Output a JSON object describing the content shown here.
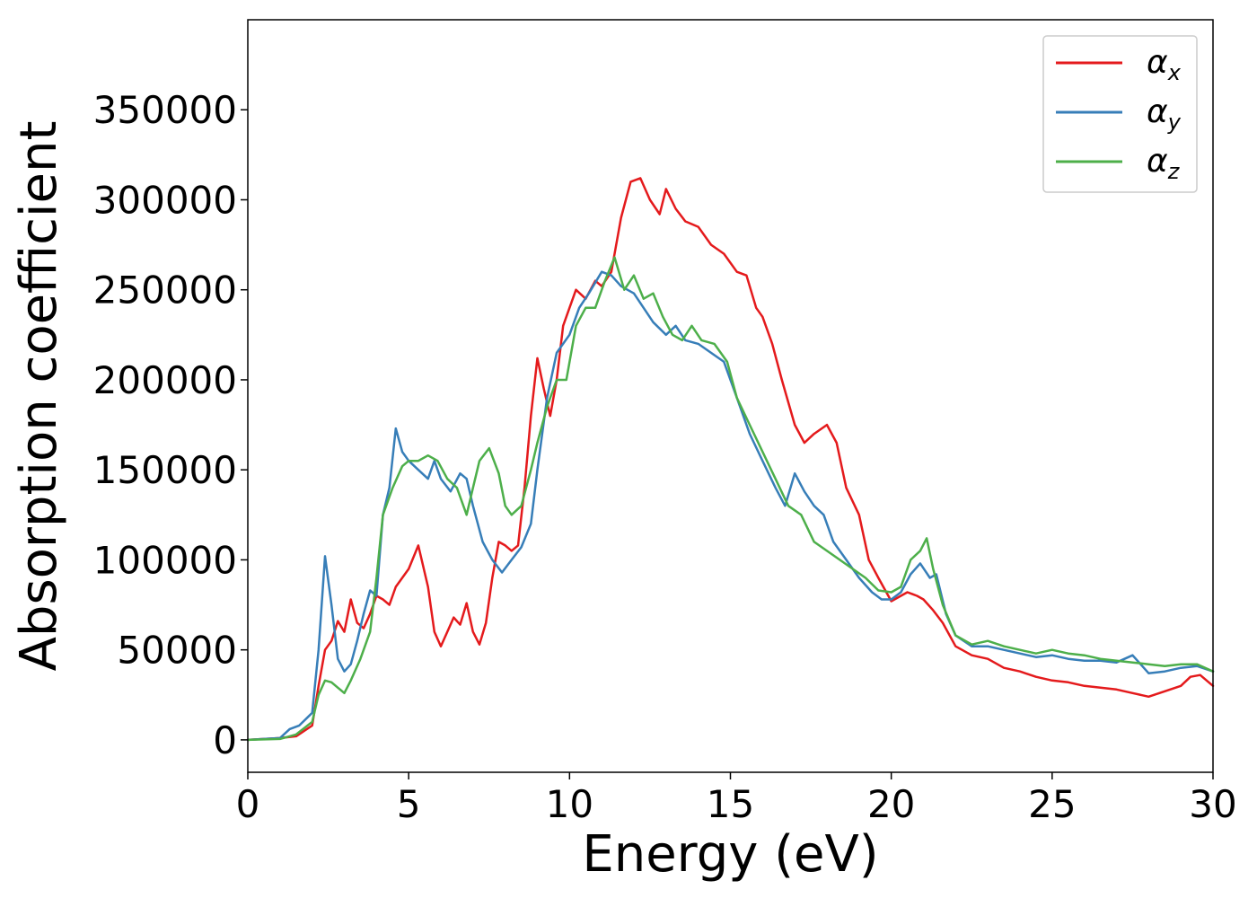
{
  "chart_data": {
    "type": "line",
    "title": "",
    "xlabel": "Energy (eV)",
    "ylabel": "Absorption coefficient",
    "xlim": [
      0,
      30
    ],
    "ylim": [
      -18000,
      400000
    ],
    "xticks": [
      0,
      5,
      10,
      15,
      20,
      25,
      30
    ],
    "xtick_labels": [
      "0",
      "5",
      "10",
      "15",
      "20",
      "25",
      "30"
    ],
    "yticks": [
      0,
      50000,
      100000,
      150000,
      200000,
      250000,
      300000,
      350000
    ],
    "ytick_labels": [
      "0",
      "50000",
      "100000",
      "150000",
      "200000",
      "250000",
      "300000",
      "350000"
    ],
    "legend_position": "top-right",
    "series": [
      {
        "name": "α_x",
        "symbol": "α",
        "sub": "x",
        "color": "#e41a1c",
        "x": [
          0,
          1,
          1.5,
          2,
          2.2,
          2.4,
          2.6,
          2.8,
          3.0,
          3.2,
          3.4,
          3.6,
          3.8,
          4.0,
          4.2,
          4.4,
          4.6,
          4.8,
          5.0,
          5.3,
          5.6,
          5.8,
          6.0,
          6.2,
          6.4,
          6.6,
          6.8,
          7.0,
          7.2,
          7.4,
          7.6,
          7.8,
          8.0,
          8.2,
          8.4,
          8.6,
          8.8,
          9.0,
          9.2,
          9.4,
          9.6,
          9.8,
          10.0,
          10.2,
          10.5,
          10.8,
          11.0,
          11.3,
          11.6,
          11.9,
          12.2,
          12.5,
          12.8,
          13.0,
          13.3,
          13.6,
          14.0,
          14.4,
          14.8,
          15.2,
          15.5,
          15.8,
          16.0,
          16.3,
          16.6,
          17.0,
          17.3,
          17.6,
          18.0,
          18.3,
          18.6,
          19.0,
          19.3,
          19.6,
          20.0,
          20.3,
          20.5,
          20.8,
          21.0,
          21.3,
          21.6,
          22.0,
          22.5,
          23,
          23.5,
          24,
          24.5,
          25,
          25.5,
          26,
          26.5,
          27,
          27.5,
          28,
          28.5,
          29,
          29.3,
          29.6,
          30
        ],
        "values": [
          0,
          1000,
          2000,
          8000,
          30000,
          50000,
          55000,
          66000,
          60000,
          78000,
          65000,
          62000,
          70000,
          80000,
          78000,
          75000,
          85000,
          90000,
          95000,
          108000,
          85000,
          60000,
          52000,
          60000,
          68000,
          64000,
          76000,
          60000,
          53000,
          65000,
          90000,
          110000,
          108000,
          105000,
          108000,
          140000,
          180000,
          212000,
          195000,
          180000,
          200000,
          230000,
          240000,
          250000,
          245000,
          255000,
          252000,
          260000,
          290000,
          310000,
          312000,
          300000,
          292000,
          306000,
          295000,
          288000,
          285000,
          275000,
          270000,
          260000,
          258000,
          240000,
          235000,
          220000,
          200000,
          175000,
          165000,
          170000,
          175000,
          165000,
          140000,
          125000,
          100000,
          90000,
          77000,
          80000,
          82000,
          80000,
          78000,
          72000,
          65000,
          52000,
          47000,
          45000,
          40000,
          38000,
          35000,
          33000,
          32000,
          30000,
          29000,
          28000,
          26000,
          24000,
          27000,
          30000,
          35000,
          36000,
          30000
        ]
      },
      {
        "name": "α_y",
        "symbol": "α",
        "sub": "y",
        "color": "#377eb8",
        "x": [
          0,
          1,
          1.3,
          1.6,
          2.0,
          2.2,
          2.4,
          2.6,
          2.8,
          3.0,
          3.2,
          3.4,
          3.6,
          3.8,
          4.0,
          4.2,
          4.4,
          4.6,
          4.8,
          5.0,
          5.3,
          5.6,
          5.8,
          6.0,
          6.3,
          6.6,
          6.8,
          7.0,
          7.3,
          7.6,
          7.9,
          8.2,
          8.5,
          8.8,
          9.0,
          9.3,
          9.6,
          10.0,
          10.3,
          10.6,
          11.0,
          11.3,
          11.6,
          12.0,
          12.3,
          12.6,
          13.0,
          13.3,
          13.6,
          14.0,
          14.4,
          14.8,
          15.2,
          15.6,
          16.0,
          16.4,
          16.7,
          17.0,
          17.3,
          17.6,
          17.9,
          18.2,
          18.6,
          19.0,
          19.4,
          19.7,
          20.0,
          20.3,
          20.6,
          20.9,
          21.2,
          21.4,
          21.7,
          22.0,
          22.5,
          23,
          23.5,
          24,
          24.5,
          25,
          25.5,
          26,
          26.5,
          27,
          27.5,
          28,
          28.5,
          29,
          29.5,
          30
        ],
        "values": [
          0,
          1000,
          6000,
          8000,
          15000,
          50000,
          102000,
          75000,
          45000,
          38000,
          42000,
          55000,
          70000,
          83000,
          80000,
          125000,
          140000,
          173000,
          160000,
          155000,
          150000,
          145000,
          155000,
          145000,
          138000,
          148000,
          145000,
          130000,
          110000,
          100000,
          93000,
          100000,
          107000,
          120000,
          150000,
          190000,
          215000,
          225000,
          240000,
          248000,
          260000,
          258000,
          252000,
          248000,
          240000,
          232000,
          225000,
          230000,
          222000,
          220000,
          215000,
          210000,
          190000,
          170000,
          155000,
          140000,
          130000,
          148000,
          138000,
          130000,
          125000,
          110000,
          100000,
          90000,
          82000,
          78000,
          78000,
          82000,
          92000,
          98000,
          90000,
          92000,
          70000,
          58000,
          52000,
          52000,
          50000,
          48000,
          46000,
          47000,
          45000,
          44000,
          44000,
          43000,
          47000,
          37000,
          38000,
          40000,
          41000,
          38000
        ]
      },
      {
        "name": "α_z",
        "symbol": "α",
        "sub": "z",
        "color": "#4daf4a",
        "x": [
          0,
          1,
          1.5,
          2.0,
          2.2,
          2.4,
          2.6,
          2.8,
          3.0,
          3.2,
          3.5,
          3.8,
          4.0,
          4.2,
          4.5,
          4.8,
          5.0,
          5.3,
          5.6,
          5.9,
          6.2,
          6.5,
          6.8,
          7.0,
          7.2,
          7.5,
          7.8,
          8.0,
          8.2,
          8.5,
          8.8,
          9.0,
          9.3,
          9.6,
          9.9,
          10.2,
          10.5,
          10.8,
          11.1,
          11.4,
          11.7,
          12.0,
          12.3,
          12.6,
          12.9,
          13.2,
          13.5,
          13.8,
          14.1,
          14.5,
          14.9,
          15.2,
          15.6,
          16.0,
          16.4,
          16.8,
          17.2,
          17.6,
          18.0,
          18.4,
          18.8,
          19.2,
          19.6,
          20.0,
          20.3,
          20.6,
          20.9,
          21.1,
          21.3,
          21.6,
          22.0,
          22.5,
          23,
          23.5,
          24,
          24.5,
          25,
          25.5,
          26,
          26.5,
          27,
          27.5,
          28,
          28.5,
          29,
          29.5,
          30
        ],
        "values": [
          0,
          500,
          3000,
          10000,
          25000,
          33000,
          32000,
          29000,
          26000,
          33000,
          45000,
          60000,
          90000,
          125000,
          140000,
          152000,
          155000,
          155000,
          158000,
          155000,
          145000,
          140000,
          125000,
          140000,
          155000,
          162000,
          148000,
          130000,
          125000,
          130000,
          150000,
          165000,
          185000,
          200000,
          200000,
          230000,
          240000,
          240000,
          255000,
          268000,
          250000,
          258000,
          245000,
          248000,
          235000,
          225000,
          222000,
          230000,
          222000,
          220000,
          210000,
          190000,
          175000,
          160000,
          145000,
          130000,
          125000,
          110000,
          105000,
          100000,
          95000,
          90000,
          83000,
          82000,
          85000,
          100000,
          105000,
          112000,
          95000,
          75000,
          58000,
          53000,
          55000,
          52000,
          50000,
          48000,
          50000,
          48000,
          47000,
          45000,
          44000,
          43000,
          42000,
          41000,
          42000,
          42000,
          38000
        ]
      }
    ]
  }
}
